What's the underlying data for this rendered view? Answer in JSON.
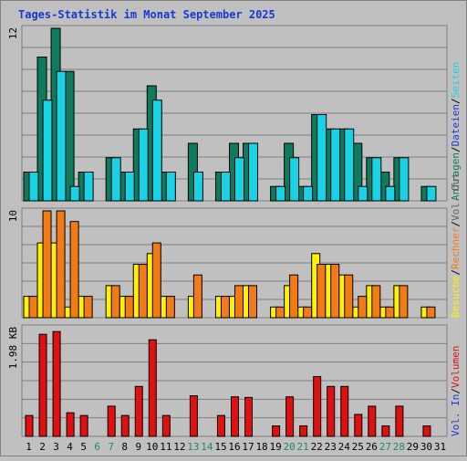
{
  "title": "Tages-Statistik im Monat September 2025",
  "colors": {
    "background": "#c0c0c0",
    "frame": "#808080",
    "title": "#1a38d0",
    "grid": "#808080",
    "anfragen": "#0e7a5e",
    "seiten": "#1ad2e6",
    "dateien": "#1a38d0",
    "besuche": "#fff200",
    "rechner": "#f27b16",
    "out": "#606060",
    "in": "#1a38d0",
    "volumen": "#e01010",
    "weekday": "#000000",
    "weekend": "#1f8c5c",
    "slash": "#000000"
  },
  "chart_data": [
    {
      "type": "bar",
      "name": "hits",
      "x": [
        1,
        2,
        3,
        4,
        5,
        6,
        7,
        8,
        9,
        10,
        11,
        12,
        13,
        14,
        15,
        16,
        17,
        18,
        19,
        20,
        21,
        22,
        23,
        24,
        25,
        26,
        27,
        28,
        29,
        30,
        31
      ],
      "ytick": "12",
      "ymax": 12,
      "legend": [
        {
          "label": "Anfragen",
          "color_key": "anfragen"
        },
        {
          "label": "Dateien",
          "color_key": "dateien"
        },
        {
          "label": "Seiten",
          "color_key": "seiten"
        }
      ],
      "series": [
        {
          "name": "Anfragen",
          "color_key": "anfragen",
          "values": [
            2,
            10,
            12,
            9,
            2,
            0,
            3,
            2,
            5,
            8,
            2,
            0,
            4,
            0,
            2,
            4,
            4,
            0,
            1,
            4,
            1,
            6,
            5,
            5,
            4,
            3,
            2,
            3,
            0,
            1,
            0
          ]
        },
        {
          "name": "Seiten",
          "color_key": "seiten",
          "values": [
            2,
            7,
            9,
            1,
            2,
            0,
            3,
            2,
            5,
            7,
            2,
            0,
            2,
            0,
            2,
            3,
            4,
            0,
            1,
            3,
            1,
            6,
            5,
            5,
            1,
            3,
            1,
            3,
            0,
            1,
            0
          ]
        }
      ]
    },
    {
      "type": "bar",
      "name": "visits",
      "x": [
        1,
        2,
        3,
        4,
        5,
        6,
        7,
        8,
        9,
        10,
        11,
        12,
        13,
        14,
        15,
        16,
        17,
        18,
        19,
        20,
        21,
        22,
        23,
        24,
        25,
        26,
        27,
        28,
        29,
        30,
        31
      ],
      "ytick": "10",
      "ymax": 10,
      "legend": [
        {
          "label": "Besuche",
          "color_key": "besuche"
        },
        {
          "label": "Rechner",
          "color_key": "rechner"
        },
        {
          "label": "Vol. Out",
          "color_key": "out"
        }
      ],
      "series": [
        {
          "name": "Besuche",
          "color_key": "besuche",
          "values": [
            2,
            7,
            7,
            1,
            2,
            0,
            3,
            2,
            5,
            6,
            2,
            0,
            2,
            0,
            2,
            2,
            3,
            0,
            1,
            3,
            1,
            6,
            5,
            4,
            1,
            3,
            1,
            3,
            0,
            1,
            0
          ]
        },
        {
          "name": "Rechner",
          "color_key": "rechner",
          "values": [
            2,
            10,
            10,
            9,
            2,
            0,
            3,
            2,
            5,
            7,
            2,
            0,
            4,
            0,
            2,
            3,
            3,
            0,
            1,
            4,
            1,
            5,
            5,
            4,
            2,
            3,
            1,
            3,
            0,
            1,
            0
          ]
        }
      ]
    },
    {
      "type": "bar",
      "name": "volume",
      "x": [
        1,
        2,
        3,
        4,
        5,
        6,
        7,
        8,
        9,
        10,
        11,
        12,
        13,
        14,
        15,
        16,
        17,
        18,
        19,
        20,
        21,
        22,
        23,
        24,
        25,
        26,
        27,
        28,
        29,
        30,
        31
      ],
      "ytick": "1.98 KB",
      "ymax": 1.98,
      "legend": [
        {
          "label": "Vol. In",
          "color_key": "in"
        },
        {
          "label": "Volumen",
          "color_key": "volumen"
        }
      ],
      "series": [
        {
          "name": "Volumen",
          "color_key": "volumen",
          "values": [
            0.38,
            1.86,
            1.91,
            0.43,
            0.38,
            0,
            0.55,
            0.38,
            0.91,
            1.76,
            0.38,
            0,
            0.74,
            0,
            0.38,
            0.72,
            0.71,
            0,
            0.19,
            0.72,
            0.19,
            1.09,
            0.91,
            0.91,
            0.4,
            0.55,
            0.19,
            0.55,
            0,
            0.19,
            0
          ]
        }
      ]
    }
  ],
  "days": [
    {
      "label": "1",
      "weekend": false
    },
    {
      "label": "2",
      "weekend": false
    },
    {
      "label": "3",
      "weekend": false
    },
    {
      "label": "4",
      "weekend": false
    },
    {
      "label": "5",
      "weekend": false
    },
    {
      "label": "6",
      "weekend": true
    },
    {
      "label": "7",
      "weekend": true
    },
    {
      "label": "8",
      "weekend": false
    },
    {
      "label": "9",
      "weekend": false
    },
    {
      "label": "10",
      "weekend": false
    },
    {
      "label": "11",
      "weekend": false
    },
    {
      "label": "12",
      "weekend": false
    },
    {
      "label": "13",
      "weekend": true
    },
    {
      "label": "14",
      "weekend": true
    },
    {
      "label": "15",
      "weekend": false
    },
    {
      "label": "16",
      "weekend": false
    },
    {
      "label": "17",
      "weekend": false
    },
    {
      "label": "18",
      "weekend": false
    },
    {
      "label": "19",
      "weekend": false
    },
    {
      "label": "20",
      "weekend": true
    },
    {
      "label": "21",
      "weekend": true
    },
    {
      "label": "22",
      "weekend": false
    },
    {
      "label": "23",
      "weekend": false
    },
    {
      "label": "24",
      "weekend": false
    },
    {
      "label": "25",
      "weekend": false
    },
    {
      "label": "26",
      "weekend": false
    },
    {
      "label": "27",
      "weekend": true
    },
    {
      "label": "28",
      "weekend": true
    },
    {
      "label": "29",
      "weekend": false
    },
    {
      "label": "30",
      "weekend": false
    },
    {
      "label": "31",
      "weekend": false
    }
  ]
}
